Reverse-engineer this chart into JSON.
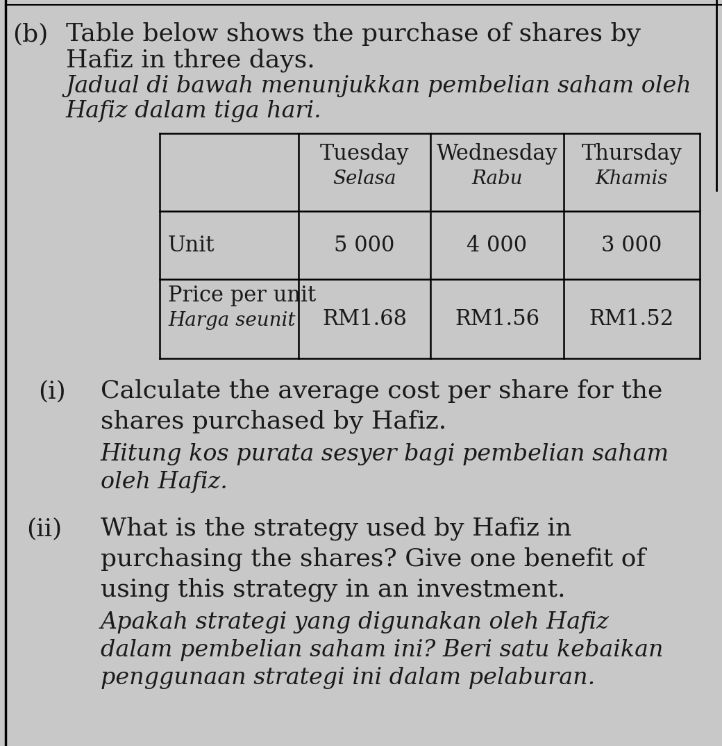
{
  "bg_color": "#c8c8c8",
  "page_bg": "#e8e8e8",
  "text_color": "#1a1a1a",
  "part_label": "(b)",
  "intro_line1_en": "Table below shows the purchase of shares by",
  "intro_line1_en_end": " (",
  "intro_line2_en": "Hafiz in three days.",
  "intro_line1_ms": "Jadual di bawah menunjukkan pembelian saham oleh",
  "intro_line2_ms": "Hafiz dalam tiga hari.",
  "col_headers_en": [
    "Tuesday",
    "Wednesday",
    "Thursday"
  ],
  "col_headers_ms": [
    "Selasa",
    "Rabu",
    "Khamis"
  ],
  "table_row1_label": "Unit",
  "table_row1_values": [
    "5 000",
    "4 000",
    "3 000"
  ],
  "table_row2_label_en": "Price per unit",
  "table_row2_label_ms": "Harga seunit",
  "table_row2_values": [
    "RM1.68",
    "RM1.56",
    "RM1.52"
  ],
  "q1_label": "(i)",
  "q1_lines_en": [
    "Calculate the average cost per share for the",
    "shares purchased by Hafiz."
  ],
  "q1_lines_ms": [
    "Hitung kos purata sesyer bagi pembelian saham",
    "oleh Hafiz."
  ],
  "q2_label": "(ii)",
  "q2_lines_en": [
    "What is the strategy used by Hafiz in",
    "purchasing the shares? Give one benefit of",
    "using this strategy in an investment."
  ],
  "q2_lines_ms": [
    "Apakah strategi yang digunakan oleh Hafiz",
    "dalam pembelian saham ini? Beri satu kebaikan",
    "penggunaan strategi ini dalam pelaburan."
  ]
}
